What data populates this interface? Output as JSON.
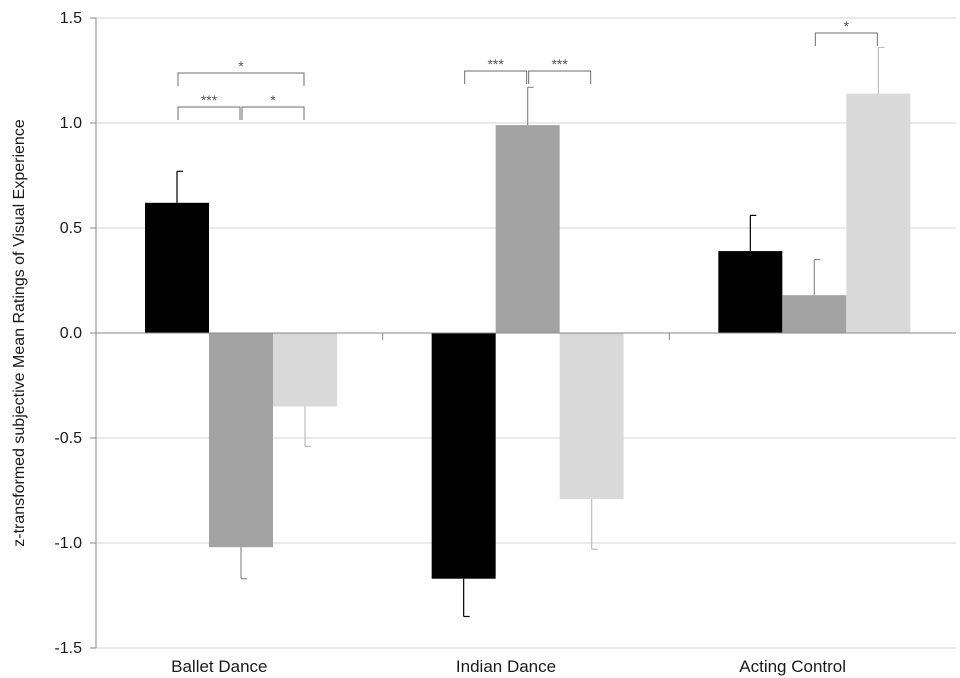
{
  "chart_data": {
    "type": "bar",
    "ylabel": "z-transformed subjective Mean Ratings of Visual Experience",
    "ylim": [
      -1.5,
      1.5
    ],
    "yticks": [
      {
        "value": 1.5,
        "label": "1.5"
      },
      {
        "value": 1.0,
        "label": "1.0"
      },
      {
        "value": 0.5,
        "label": "0.5"
      },
      {
        "value": 0.0,
        "label": "0.0"
      },
      {
        "value": -0.5,
        "label": "-0.5"
      },
      {
        "value": -1.0,
        "label": "-1.0"
      },
      {
        "value": -1.5,
        "label": "-1.5"
      }
    ],
    "grid": true,
    "legend": "none",
    "categories": [
      "Ballet Dance",
      "Indian Dance",
      "Acting Control"
    ],
    "series": [
      {
        "color": "#000000",
        "values": [
          0.62,
          -1.17,
          0.39
        ],
        "errors": [
          0.15,
          0.18,
          0.17
        ]
      },
      {
        "color": "#a3a3a3",
        "values": [
          -1.02,
          0.99,
          0.18
        ],
        "errors": [
          0.15,
          0.18,
          0.17
        ]
      },
      {
        "color": "#d9d9d9",
        "values": [
          -0.35,
          -0.79,
          1.14
        ],
        "errors": [
          0.19,
          0.24,
          0.22
        ]
      }
    ],
    "significance": [
      {
        "category": 0,
        "from_series": 0,
        "to_series": 2,
        "level": 1,
        "label": "*"
      },
      {
        "category": 0,
        "from_series": 0,
        "to_series": 1,
        "level": 0,
        "label": "***"
      },
      {
        "category": 0,
        "from_series": 1,
        "to_series": 2,
        "level": 0,
        "label": "*"
      },
      {
        "category": 1,
        "from_series": 0,
        "to_series": 1,
        "level": 0,
        "label": "***"
      },
      {
        "category": 1,
        "from_series": 1,
        "to_series": 2,
        "level": 0,
        "label": "***"
      },
      {
        "category": 2,
        "from_series": 1,
        "to_series": 2,
        "level": 0,
        "label": "*"
      }
    ]
  }
}
